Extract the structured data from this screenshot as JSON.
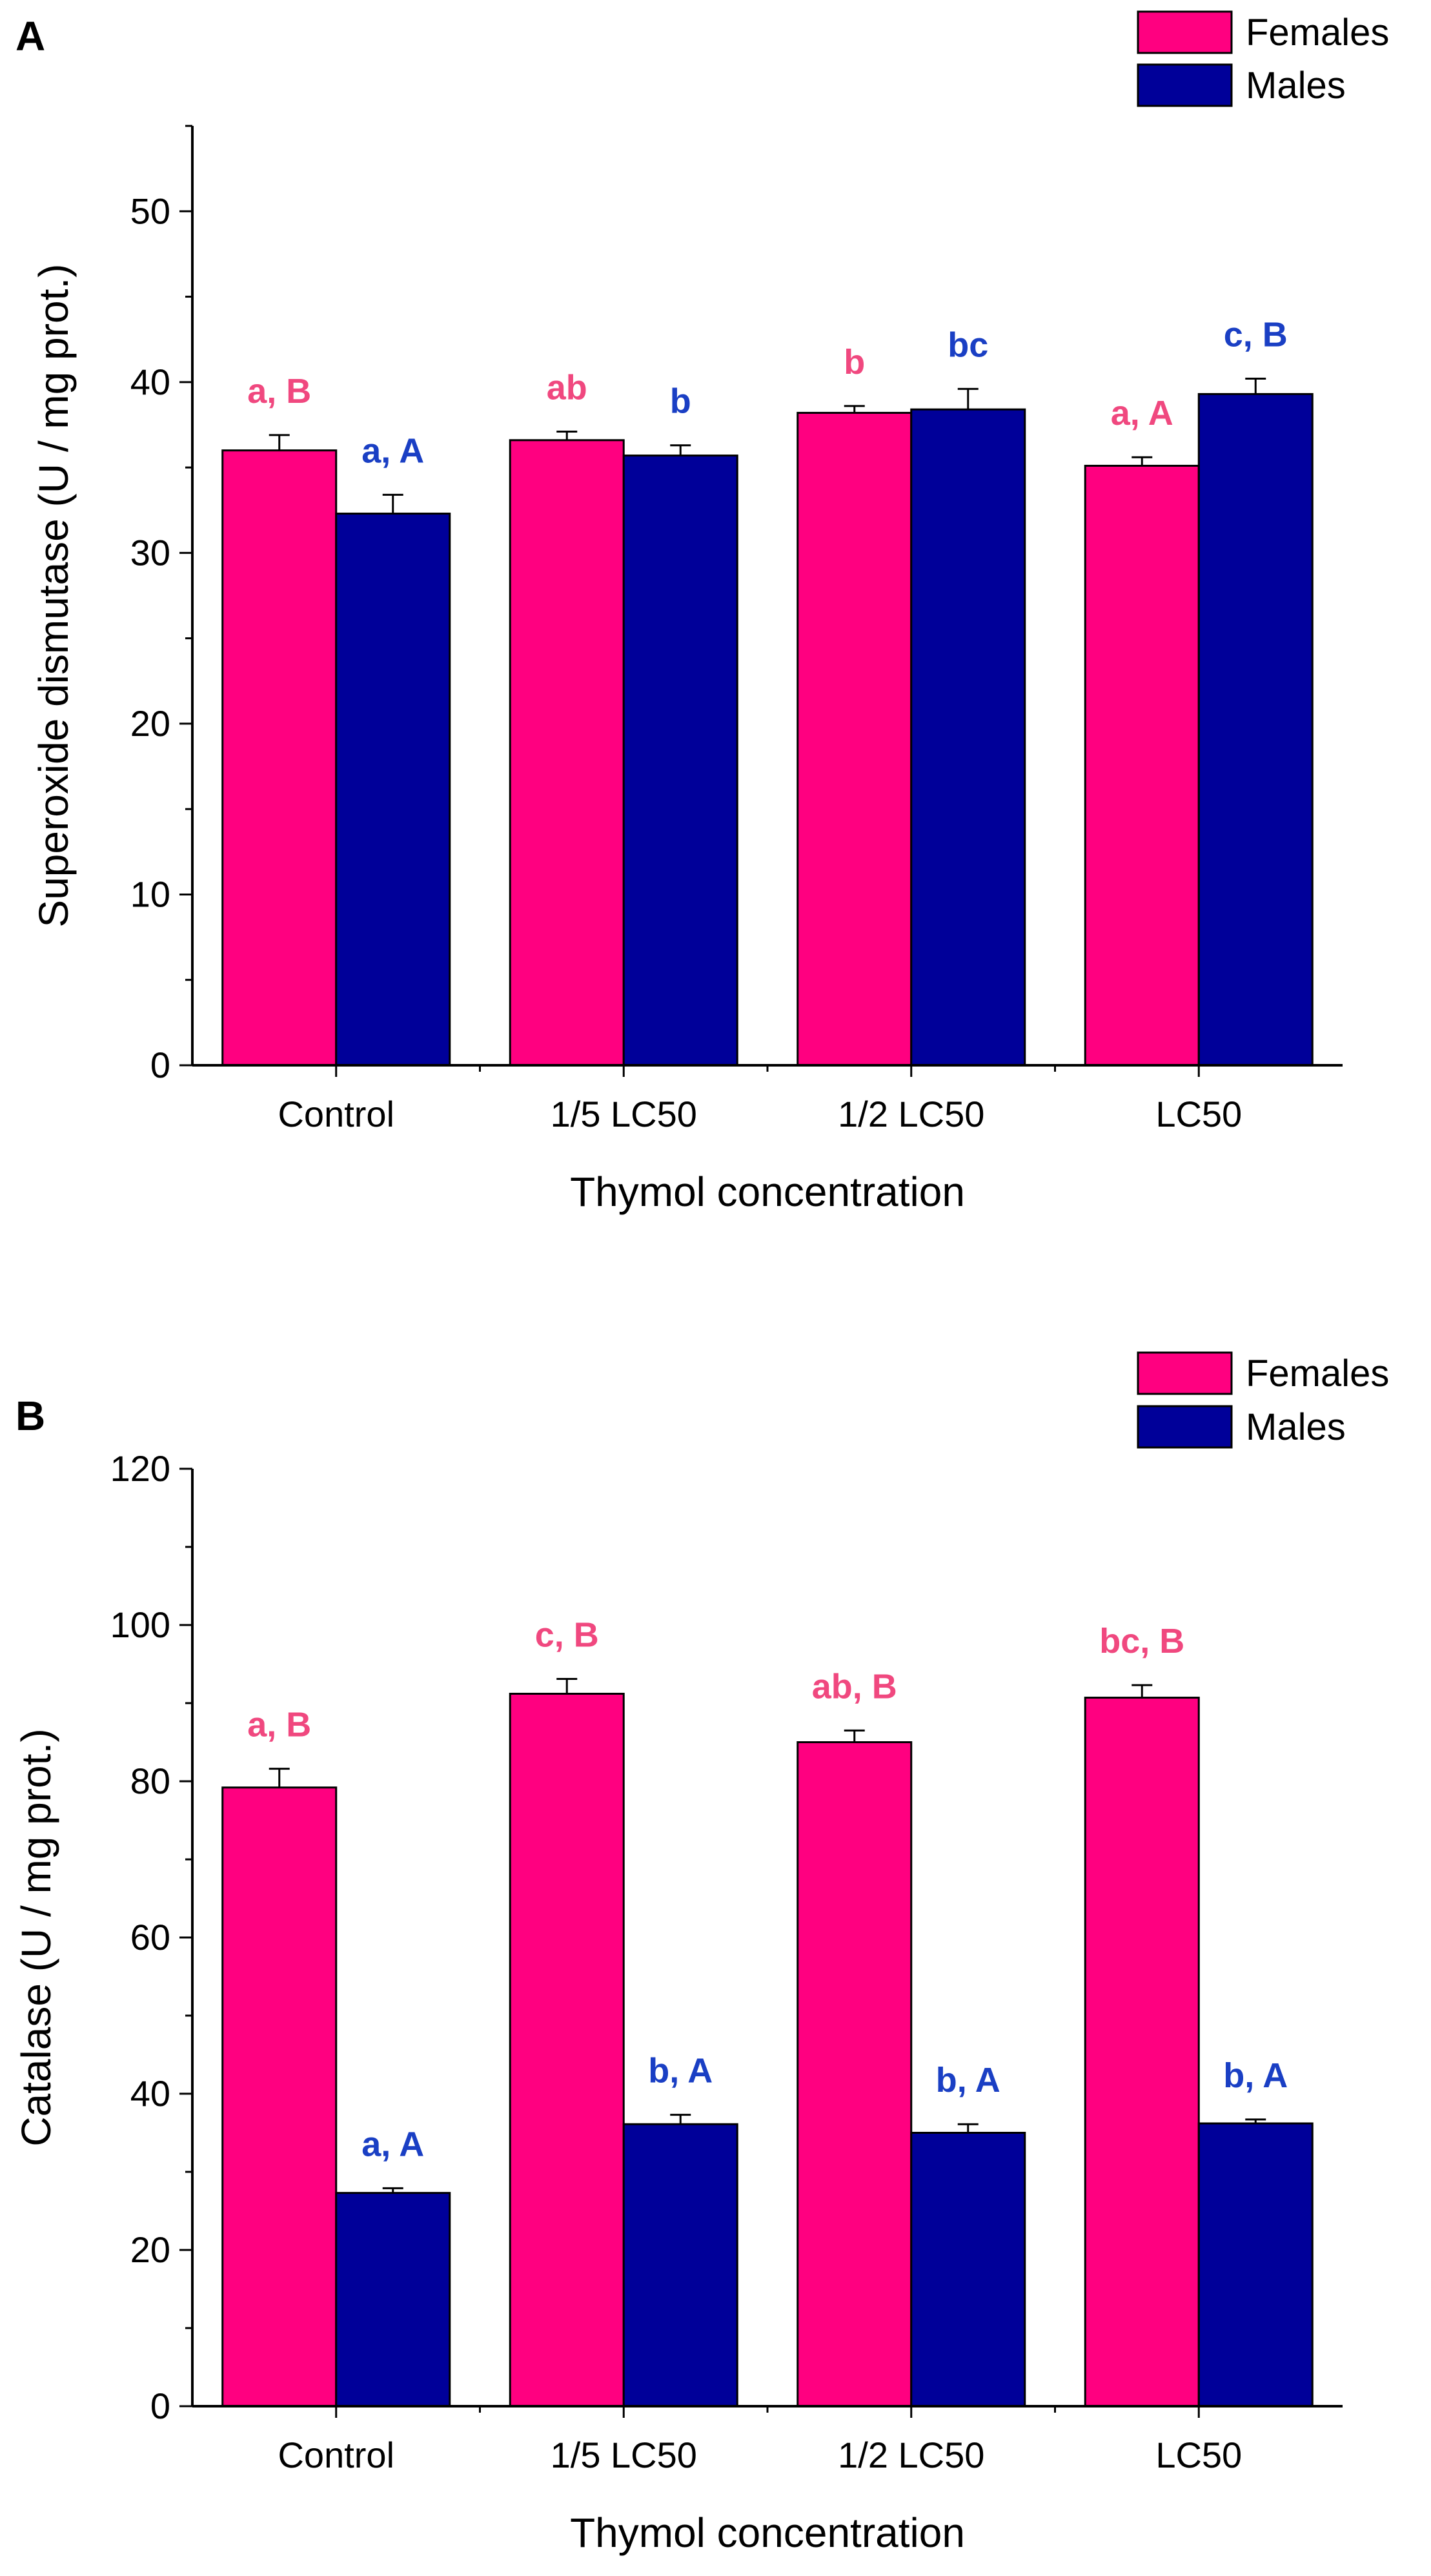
{
  "colors": {
    "females": "#ff0080",
    "males": "#000099",
    "females_label": "#f0487f",
    "males_label": "#1a3fc4",
    "axis": "#000000"
  },
  "chart_data": [
    {
      "panel": "A",
      "type": "bar",
      "categories": [
        "Control",
        "1/5 LC50",
        "1/2 LC50",
        "LC50"
      ],
      "xlabel": "Thymol concentration",
      "ylabel": "Superoxide dismutase (U / mg prot.)",
      "ylim": [
        0,
        55
      ],
      "yticks": [
        "0",
        "10",
        "20",
        "30",
        "40",
        "50"
      ],
      "legend": {
        "position": "top-right",
        "entries": [
          "Females",
          "Males"
        ]
      },
      "series": [
        {
          "name": "Females",
          "values": [
            36.0,
            36.6,
            38.2,
            35.1
          ],
          "errors": [
            0.9,
            0.5,
            0.4,
            0.5
          ],
          "labels": [
            "a, B",
            "ab",
            "b",
            "a, A"
          ]
        },
        {
          "name": "Males",
          "values": [
            32.3,
            35.7,
            38.4,
            39.3
          ],
          "errors": [
            1.1,
            0.6,
            1.2,
            0.9
          ],
          "labels": [
            "a, A",
            "b",
            "bc",
            "c, B"
          ]
        }
      ]
    },
    {
      "panel": "B",
      "type": "bar",
      "categories": [
        "Control",
        "1/5 LC50",
        "1/2 LC50",
        "LC50"
      ],
      "xlabel": "Thymol concentration",
      "ylabel": "Catalase (U / mg prot.)",
      "ylim": [
        0,
        120
      ],
      "yticks": [
        "0",
        "20",
        "40",
        "60",
        "80",
        "100",
        "120"
      ],
      "legend": {
        "position": "top-right",
        "entries": [
          "Females",
          "Males"
        ]
      },
      "series": [
        {
          "name": "Females",
          "values": [
            79.2,
            91.2,
            85.0,
            90.7
          ],
          "errors": [
            2.4,
            1.9,
            1.5,
            1.6
          ],
          "labels": [
            "a, B",
            "c, B",
            "ab, B",
            "bc, B"
          ]
        },
        {
          "name": "Males",
          "values": [
            27.3,
            36.1,
            35.0,
            36.2
          ],
          "errors": [
            0.6,
            1.2,
            1.1,
            0.5
          ],
          "labels": [
            "a, A",
            "b, A",
            "b, A",
            "b, A"
          ]
        }
      ]
    }
  ]
}
